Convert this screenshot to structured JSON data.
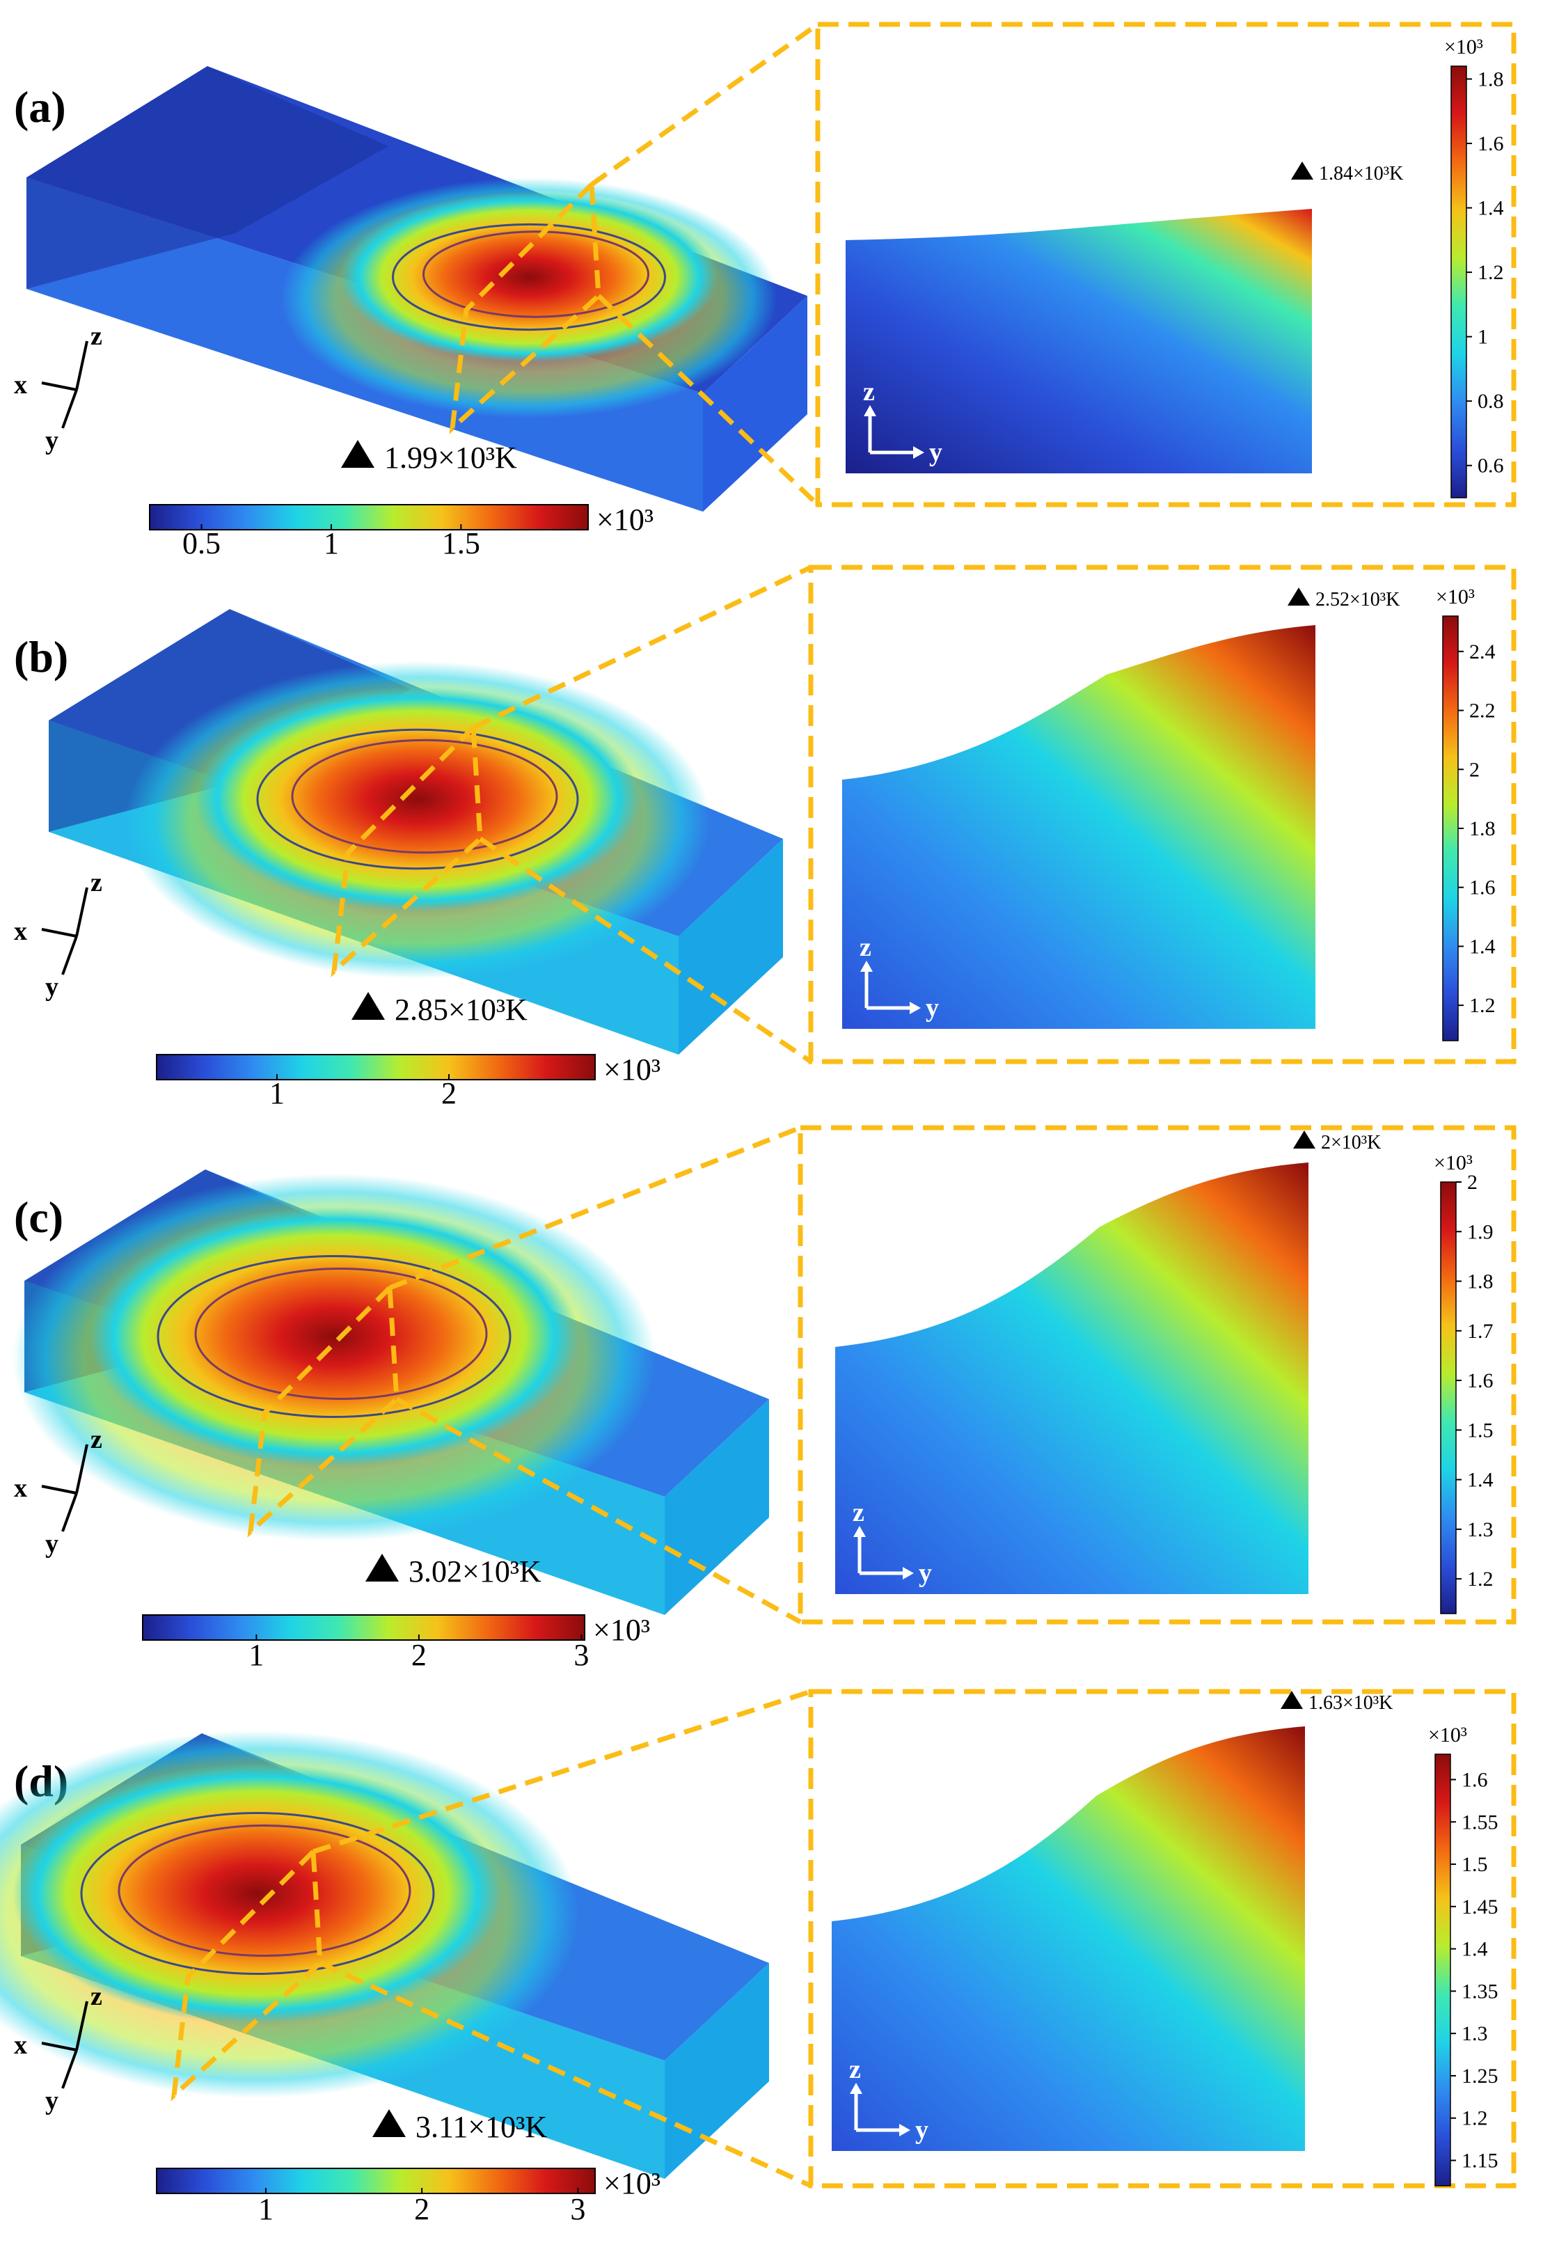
{
  "figure": {
    "colormap": [
      "#1b1f8a",
      "#2a4fd8",
      "#2f8cf0",
      "#1fd3e6",
      "#40e8b0",
      "#b8ec2e",
      "#f5c21a",
      "#f26a12",
      "#d61818",
      "#8c0c0c"
    ],
    "frame_color": "#fbbc15",
    "contour_colors": [
      "#7a3a63",
      "#3a4a8a"
    ],
    "panels": [
      {
        "label": "(a)",
        "peak_3d": "1.99×10³K",
        "peak_2d": "1.84×10³K",
        "main_ticks": [
          "0.5",
          "1",
          "1.5"
        ],
        "main_tick_values": [
          0.5,
          1,
          1.5
        ],
        "main_range": [
          0.3,
          1.99
        ],
        "multiplier": "×10³",
        "side_ticks": [
          "1.8",
          "1.6",
          "1.4",
          "1.2",
          "1",
          "0.8",
          "0.6"
        ],
        "side_tick_values": [
          1.8,
          1.6,
          1.4,
          1.2,
          1.0,
          0.8,
          0.6
        ],
        "side_range": [
          0.5,
          1.84
        ],
        "side_multiplier": "×10³",
        "axes": {
          "x": "x",
          "y": "y",
          "z": "z"
        }
      },
      {
        "label": "(b)",
        "peak_3d": "2.85×10³K",
        "peak_2d": "2.52×10³K",
        "main_ticks": [
          "1",
          "2"
        ],
        "main_tick_values": [
          1,
          2
        ],
        "main_range": [
          0.3,
          2.85
        ],
        "multiplier": "×10³",
        "side_ticks": [
          "2.4",
          "2.2",
          "2",
          "1.8",
          "1.6",
          "1.4",
          "1.2"
        ],
        "side_tick_values": [
          2.4,
          2.2,
          2.0,
          1.8,
          1.6,
          1.4,
          1.2
        ],
        "side_range": [
          1.08,
          2.52
        ],
        "side_multiplier": "×10³",
        "axes": {
          "x": "x",
          "y": "y",
          "z": "z"
        }
      },
      {
        "label": "(c)",
        "peak_3d": "3.02×10³K",
        "peak_2d": "2×10³K",
        "main_ticks": [
          "1",
          "2",
          "3"
        ],
        "main_tick_values": [
          1,
          2,
          3
        ],
        "main_range": [
          0.3,
          3.02
        ],
        "multiplier": "×10³",
        "side_ticks": [
          "2",
          "1.9",
          "1.8",
          "1.7",
          "1.6",
          "1.5",
          "1.4",
          "1.3",
          "1.2"
        ],
        "side_tick_values": [
          2.0,
          1.9,
          1.8,
          1.7,
          1.6,
          1.5,
          1.4,
          1.3,
          1.2
        ],
        "side_range": [
          1.13,
          2.0
        ],
        "side_multiplier": "×10³",
        "axes": {
          "x": "x",
          "y": "y",
          "z": "z"
        }
      },
      {
        "label": "(d)",
        "peak_3d": "3.11×10³K",
        "peak_2d": "1.63×10³K",
        "main_ticks": [
          "1",
          "2",
          "3"
        ],
        "main_tick_values": [
          1,
          2,
          3
        ],
        "main_range": [
          0.3,
          3.11
        ],
        "multiplier": "×10³",
        "side_ticks": [
          "1.6",
          "1.55",
          "1.5",
          "1.45",
          "1.4",
          "1.35",
          "1.3",
          "1.25",
          "1.2",
          "1.15"
        ],
        "side_tick_values": [
          1.6,
          1.55,
          1.5,
          1.45,
          1.4,
          1.35,
          1.3,
          1.25,
          1.2,
          1.15
        ],
        "side_range": [
          1.12,
          1.63
        ],
        "side_multiplier": "×10³",
        "axes": {
          "x": "x",
          "y": "y",
          "z": "z"
        }
      }
    ]
  }
}
